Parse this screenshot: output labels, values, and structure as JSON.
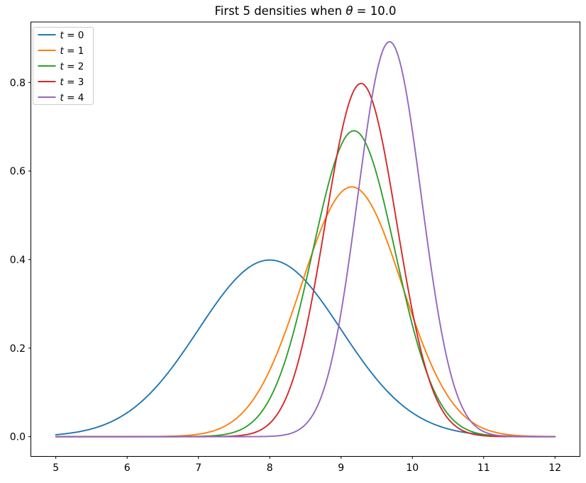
{
  "figure": {
    "background": "#ffffff",
    "title_parts": {
      "before": "First 5 densities when ",
      "symbol": "θ",
      "after": " = 10.0"
    }
  },
  "chart_data": {
    "type": "line",
    "title": "First 5 densities when θ = 10.0",
    "xlabel": "",
    "ylabel": "",
    "grid": false,
    "legend": {
      "position": "upper left",
      "frame": true,
      "border_color": "#cccccc"
    },
    "xlim": [
      4.65,
      12.35
    ],
    "ylim": [
      -0.0446,
      0.9366
    ],
    "x_sample_range": [
      5.0,
      12.0
    ],
    "curve_model": "gaussian_pdf",
    "x_ticks": {
      "values": [
        5,
        6,
        7,
        8,
        9,
        10,
        11,
        12
      ],
      "labels": [
        "5",
        "6",
        "7",
        "8",
        "9",
        "10",
        "11",
        "12"
      ]
    },
    "y_ticks": {
      "values": [
        0.0,
        0.2,
        0.4,
        0.6,
        0.8
      ],
      "labels": [
        "0.0",
        "0.2",
        "0.4",
        "0.6",
        "0.8"
      ]
    },
    "series": [
      {
        "label": "t = 0",
        "label_var": "t",
        "label_rest": " = 0",
        "color": "#1f77b4",
        "mean": 8.0,
        "sd": 1.0,
        "peak": 0.399
      },
      {
        "label": "t = 1",
        "label_var": "t",
        "label_rest": " = 1",
        "color": "#ff7f0e",
        "mean": 9.15,
        "sd": 0.7071,
        "peak": 0.564
      },
      {
        "label": "t = 2",
        "label_var": "t",
        "label_rest": " = 2",
        "color": "#2ca02c",
        "mean": 9.18,
        "sd": 0.5774,
        "peak": 0.691
      },
      {
        "label": "t = 3",
        "label_var": "t",
        "label_rest": " = 3",
        "color": "#d62728",
        "mean": 9.28,
        "sd": 0.5,
        "peak": 0.798
      },
      {
        "label": "t = 4",
        "label_var": "t",
        "label_rest": " = 4",
        "color": "#9467bd",
        "mean": 9.68,
        "sd": 0.4472,
        "peak": 0.892
      }
    ]
  }
}
